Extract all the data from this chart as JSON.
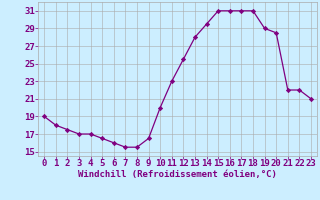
{
  "x": [
    0,
    1,
    2,
    3,
    4,
    5,
    6,
    7,
    8,
    9,
    10,
    11,
    12,
    13,
    14,
    15,
    16,
    17,
    18,
    19,
    20,
    21,
    22,
    23
  ],
  "y": [
    19,
    18,
    17.5,
    17,
    17,
    16.5,
    16,
    15.5,
    15.5,
    16.5,
    20,
    23,
    25.5,
    28,
    29.5,
    31,
    31,
    31,
    31,
    29,
    28.5,
    22,
    22,
    21
  ],
  "line_color": "#800080",
  "marker": "D",
  "marker_size": 2.2,
  "bg_color": "#cceeff",
  "grid_color": "#aaaaaa",
  "xlabel": "Windchill (Refroidissement éolien,°C)",
  "xlabel_color": "#800080",
  "tick_color": "#800080",
  "ylim": [
    14.5,
    32
  ],
  "yticks": [
    15,
    17,
    19,
    21,
    23,
    25,
    27,
    29,
    31
  ],
  "xlim": [
    -0.5,
    23.5
  ],
  "xticks": [
    0,
    1,
    2,
    3,
    4,
    5,
    6,
    7,
    8,
    9,
    10,
    11,
    12,
    13,
    14,
    15,
    16,
    17,
    18,
    19,
    20,
    21,
    22,
    23
  ],
  "tick_fontsize": 6.5,
  "xlabel_fontsize": 6.5
}
